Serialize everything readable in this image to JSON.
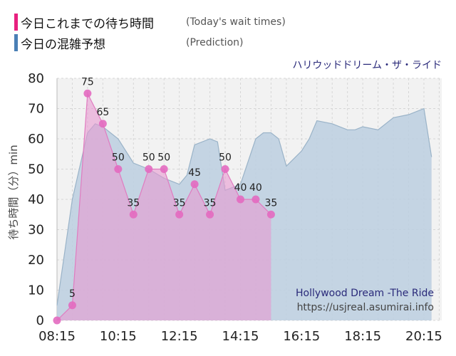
{
  "legend": [
    {
      "label": "今日これまでの待ち時間",
      "sub": "(Today's wait times)",
      "color": "#e8207f"
    },
    {
      "label": "今日の混雑予想",
      "sub": "(Prediction)",
      "color": "#4a7fb5"
    }
  ],
  "notes": {
    "attraction": "ハリウッドドリーム・ザ・ライド",
    "name_en": "Hollywood Dream -The Ride",
    "url": "https://usjreal.asumirai.info"
  },
  "chart_data": {
    "type": "area",
    "title": "ハリウッドドリーム・ザ・ライド",
    "ylabel": "待ち時間（分）min",
    "xlabel": "",
    "ylim": [
      0,
      80
    ],
    "yticks": [
      "0",
      "10",
      "20",
      "30",
      "40",
      "50",
      "60",
      "70",
      "80"
    ],
    "xticks": [
      "08:15",
      "10:15",
      "12:15",
      "14:15",
      "16:15",
      "18:15",
      "20:15"
    ],
    "grid": true,
    "series": [
      {
        "name": "今日の混雑予想",
        "color": "#b9cfe0",
        "x": [
          "08:15",
          "08:45",
          "09:15",
          "09:30",
          "09:45",
          "10:15",
          "10:45",
          "11:15",
          "11:45",
          "12:15",
          "12:30",
          "12:45",
          "13:15",
          "13:30",
          "13:45",
          "14:15",
          "14:45",
          "15:00",
          "15:15",
          "15:30",
          "15:45",
          "16:15",
          "16:30",
          "16:45",
          "17:15",
          "17:45",
          "18:00",
          "18:15",
          "18:45",
          "19:15",
          "19:45",
          "20:15",
          "20:30"
        ],
        "values": [
          5,
          40,
          62,
          65,
          64,
          60,
          52,
          50,
          47,
          45,
          48,
          58,
          60,
          59,
          43,
          45,
          60,
          62,
          62,
          60,
          51,
          56,
          60,
          66,
          65,
          63,
          63,
          64,
          63,
          67,
          68,
          70,
          54
        ]
      },
      {
        "name": "今日これまでの待ち時間",
        "color": "#e8207f",
        "x": [
          "08:15",
          "08:45",
          "09:15",
          "09:45",
          "10:15",
          "10:45",
          "11:15",
          "11:45",
          "12:15",
          "12:45",
          "13:15",
          "13:45",
          "14:15",
          "14:45",
          "15:15"
        ],
        "values": [
          0,
          5,
          75,
          65,
          50,
          35,
          50,
          50,
          35,
          45,
          35,
          50,
          40,
          40,
          35
        ]
      }
    ]
  }
}
